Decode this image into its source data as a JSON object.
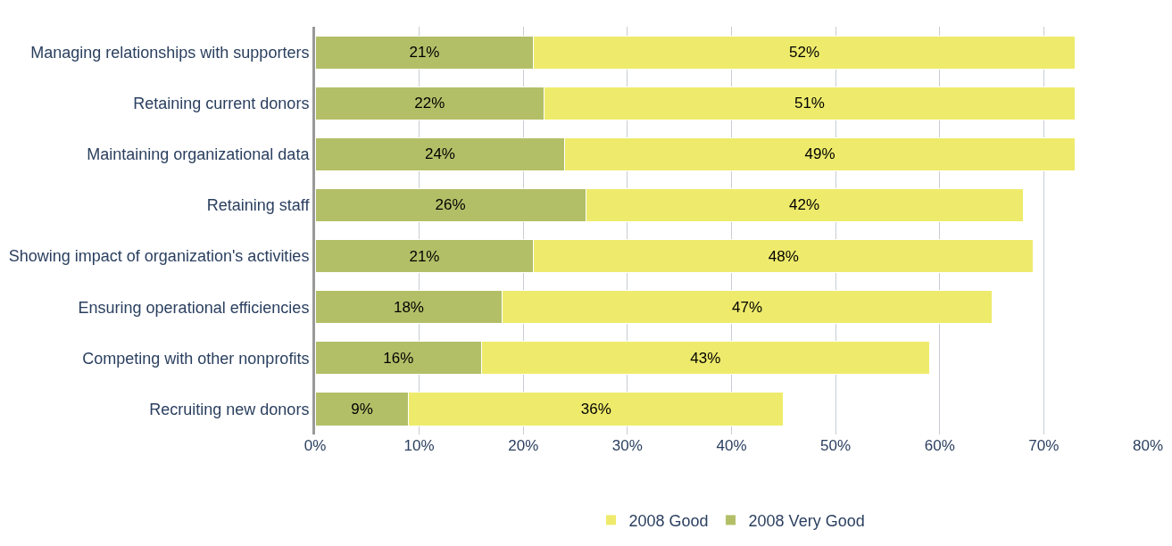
{
  "chart_data": {
    "type": "bar",
    "orientation": "horizontal",
    "stacked": true,
    "categories": [
      "Managing relationships with supporters",
      "Retaining current donors",
      "Maintaining organizational data",
      "Retaining staff",
      "Showing impact of organization's activities",
      "Ensuring operational efficiencies",
      "Competing with other nonprofits",
      "Recruiting new donors"
    ],
    "series": [
      {
        "name": "2008 Very Good",
        "color": "#b3bf67",
        "values": [
          21,
          22,
          24,
          26,
          21,
          18,
          16,
          9
        ],
        "value_labels": [
          "21%",
          "22%",
          "24%",
          "26%",
          "21%",
          "18%",
          "16%",
          "9%"
        ]
      },
      {
        "name": "2008 Good",
        "color": "#eeeb6c",
        "values": [
          52,
          51,
          49,
          42,
          48,
          47,
          43,
          36
        ],
        "value_labels": [
          "52%",
          "51%",
          "49%",
          "42%",
          "48%",
          "47%",
          "43%",
          "36%"
        ]
      }
    ],
    "xlim": [
      0,
      80
    ],
    "xticks": [
      {
        "value": 0,
        "label": "0%"
      },
      {
        "value": 10,
        "label": "10%"
      },
      {
        "value": 20,
        "label": "20%"
      },
      {
        "value": 30,
        "label": "30%"
      },
      {
        "value": 40,
        "label": "40%"
      },
      {
        "value": 50,
        "label": "50%"
      },
      {
        "value": 60,
        "label": "60%"
      },
      {
        "value": 70,
        "label": "70%"
      },
      {
        "value": 80,
        "label": "80%"
      }
    ],
    "grid": "x",
    "legend": "bottom"
  }
}
